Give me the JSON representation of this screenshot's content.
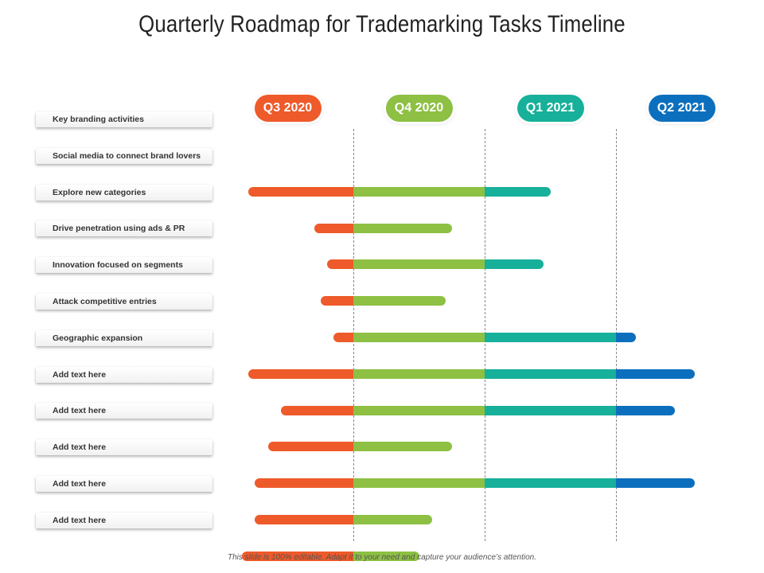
{
  "title": "Quarterly Roadmap for Trademarking Tasks Timeline",
  "footer": "This slide is 100% editable. Adapt it to your need and capture your audience’s attention.",
  "colors": {
    "q3": "#EE5A2A",
    "q4": "#8DC043",
    "q1": "#17B09A",
    "q2": "#0C6FBE"
  },
  "quarters": [
    {
      "label": "Q3 2020",
      "color": "#EE5A2A"
    },
    {
      "label": "Q4 2020",
      "color": "#8DC043"
    },
    {
      "label": "Q1 2021",
      "color": "#17B09A"
    },
    {
      "label": "Q2 2021",
      "color": "#0C6FBE"
    }
  ],
  "tasks": [
    {
      "label": "Key branding activities",
      "start": null,
      "end": null
    },
    {
      "label": "Social media to connect brand lovers",
      "start": 0.2,
      "end": 2.5
    },
    {
      "label": "Explore new categories",
      "start": 0.7,
      "end": 1.75
    },
    {
      "label": "Drive penetration using ads & PR",
      "start": 0.8,
      "end": 2.45
    },
    {
      "label": "Innovation focused on segments",
      "start": 0.75,
      "end": 1.7
    },
    {
      "label": "Attack competitive entries",
      "start": 0.85,
      "end": 3.15
    },
    {
      "label": "Geographic expansion",
      "start": 0.2,
      "end": 3.6
    },
    {
      "label": "Add text here",
      "start": 0.45,
      "end": 3.45
    },
    {
      "label": "Add text here",
      "start": 0.35,
      "end": 1.75
    },
    {
      "label": "Add text here",
      "start": 0.25,
      "end": 3.6
    },
    {
      "label": "Add text here",
      "start": 0.25,
      "end": 1.6
    },
    {
      "label": "Add text here",
      "start": 0.15,
      "end": 1.5
    }
  ]
}
